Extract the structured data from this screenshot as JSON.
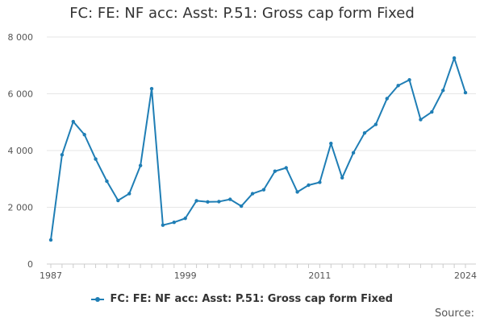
{
  "chart_data": {
    "type": "line",
    "title": "FC: FE: NF acc: Asst: P.51: Gross cap form Fixed",
    "xlabel": "",
    "ylabel": "",
    "ylim": [
      0,
      8000
    ],
    "xlim": [
      1987,
      2024
    ],
    "y_ticks": [
      0,
      2000,
      4000,
      6000,
      8000
    ],
    "y_tick_labels": [
      "0",
      "2 000",
      "4 000",
      "6 000",
      "8 000"
    ],
    "x_tick_labels": [
      "1987",
      "1999",
      "2011",
      "2024"
    ],
    "grid": true,
    "legend": "bottom",
    "color": "#1f7eb5",
    "series": [
      {
        "name": "FC: FE: NF acc: Asst: P.51: Gross cap form Fixed",
        "x": [
          1987,
          1988,
          1989,
          1990,
          1991,
          1992,
          1993,
          1994,
          1995,
          1996,
          1997,
          1998,
          1999,
          2000,
          2001,
          2002,
          2003,
          2004,
          2005,
          2006,
          2007,
          2008,
          2009,
          2010,
          2011,
          2012,
          2013,
          2014,
          2015,
          2016,
          2017,
          2018,
          2019,
          2020,
          2021,
          2022,
          2023,
          2024
        ],
        "values": [
          850,
          3850,
          5020,
          4560,
          3700,
          2920,
          2240,
          2480,
          3470,
          6180,
          1370,
          1470,
          1610,
          2230,
          2190,
          2200,
          2280,
          2040,
          2480,
          2620,
          3270,
          3390,
          2540,
          2780,
          2880,
          4250,
          3040,
          3920,
          4620,
          4920,
          5830,
          6290,
          6490,
          5090,
          5360,
          6120,
          7260,
          6040
        ]
      }
    ]
  },
  "source_label": "Source:"
}
